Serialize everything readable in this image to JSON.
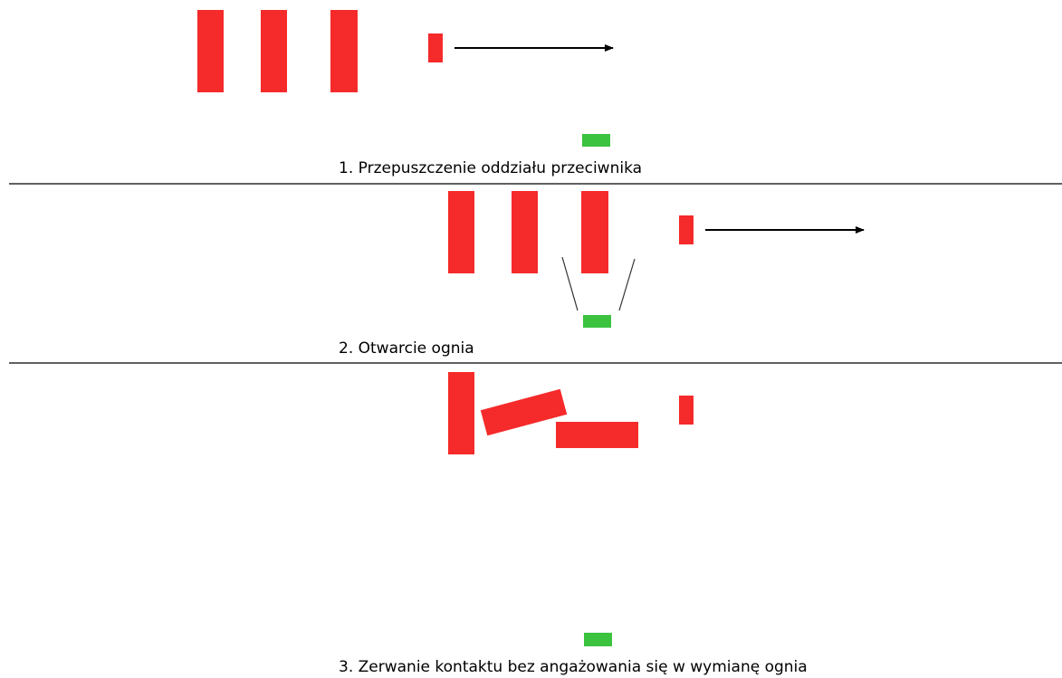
{
  "colors": {
    "enemy": "#f52a2a",
    "friendly": "#3bc23f",
    "line": "#000000",
    "background": "#ffffff"
  },
  "panels": [
    {
      "caption": "1. Przepuszczenie oddziału przeciwnika",
      "enemy_units": 4,
      "friendly_units": 1,
      "shows_movement_arrow": true,
      "shows_fire_lines": false
    },
    {
      "caption": "2. Otwarcie ognia",
      "enemy_units": 4,
      "friendly_units": 1,
      "shows_movement_arrow": true,
      "shows_fire_lines": true
    },
    {
      "caption": "3. Zerwanie kontaktu bez angażowania się w wymianę ognia",
      "enemy_units": 4,
      "friendly_units": 1,
      "shows_movement_arrow": false,
      "shows_fire_lines": false
    }
  ]
}
